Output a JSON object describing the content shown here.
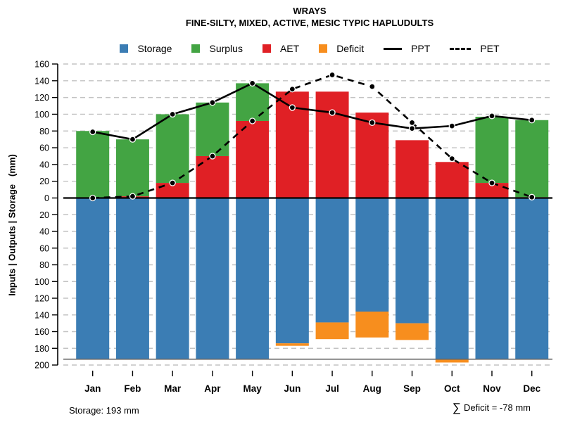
{
  "title": {
    "line1": "WRAYS",
    "line2": "FINE-SILTY, MIXED, ACTIVE, MESIC TYPIC HAPLUDULTS"
  },
  "legend": {
    "storage": "Storage",
    "surplus": "Surplus",
    "aet": "AET",
    "deficit": "Deficit",
    "ppt": "PPT",
    "pet": "PET"
  },
  "y_axis": {
    "title": "Inputs | Outputs | Storage   (mm)"
  },
  "footer": {
    "storage_note": "Storage: 193 mm",
    "deficit_sigma": "∑",
    "deficit_text": "Deficit = -78 mm"
  },
  "colors": {
    "storage": "#3B7DB4",
    "surplus": "#43A443",
    "aet": "#E02025",
    "deficit": "#F78E1E",
    "line": "#000000",
    "grid": "#C3C3C3",
    "baseline": "#666666"
  },
  "chart_data": {
    "type": "bar+line",
    "title": "WRAYS",
    "subtitle": "FINE-SILTY, MIXED, ACTIVE, MESIC TYPIC HAPLUDULTS",
    "xlabel": "",
    "ylabel": "Inputs | Outputs | Storage (mm)",
    "legend_position": "top",
    "grid": "dashed, every 20 mm",
    "y_upper_max": 160,
    "y_lower_max": 200,
    "y_upper_ticks": [
      0,
      20,
      40,
      60,
      80,
      100,
      120,
      140,
      160
    ],
    "y_lower_ticks": [
      20,
      40,
      60,
      80,
      100,
      120,
      140,
      160,
      180,
      200
    ],
    "storage_capacity_mm": 193,
    "deficit_total_mm": -78,
    "categories": [
      "Jan",
      "Feb",
      "Mar",
      "Apr",
      "May",
      "Jun",
      "Jul",
      "Aug",
      "Sep",
      "Oct",
      "Nov",
      "Dec"
    ],
    "series": [
      {
        "name": "Storage",
        "type": "bar",
        "axis": "lower-inverted",
        "values": [
          193,
          193,
          193,
          193,
          193,
          174,
          149,
          136,
          150,
          193,
          193,
          193
        ]
      },
      {
        "name": "Deficit",
        "type": "bar",
        "axis": "lower-inverted-stacked-below-storage",
        "values": [
          0,
          0,
          0,
          0,
          0,
          3,
          20,
          31,
          20,
          4,
          0,
          0
        ]
      },
      {
        "name": "AET",
        "type": "bar",
        "axis": "upper",
        "values": [
          0,
          2,
          18,
          50,
          92,
          127,
          127,
          102,
          69,
          43,
          18,
          1
        ]
      },
      {
        "name": "Surplus",
        "type": "bar",
        "axis": "upper-stacked-on-aet",
        "values": [
          80,
          68,
          82,
          64,
          45,
          0,
          0,
          0,
          0,
          0,
          79,
          92
        ]
      },
      {
        "name": "PPT",
        "type": "line",
        "style": "solid",
        "marker": "filled-circle",
        "values": [
          79,
          70,
          100,
          114,
          137,
          108,
          102,
          90,
          83,
          86,
          98,
          93
        ]
      },
      {
        "name": "PET",
        "type": "line",
        "style": "dashed",
        "marker": "filled-circle",
        "values": [
          0,
          2,
          18,
          50,
          92,
          130,
          147,
          133,
          90,
          47,
          18,
          1
        ]
      }
    ]
  }
}
